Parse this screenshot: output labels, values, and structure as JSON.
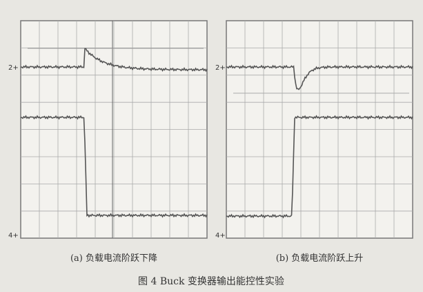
{
  "panels": [
    {
      "caption": "(a) 负载电流阶跃下降",
      "markers": [
        "2+",
        "4+"
      ]
    },
    {
      "caption": "(b) 负载电流阶跃上升",
      "markers": [
        "2+",
        "4+"
      ]
    }
  ],
  "figure_caption": "图 4  Buck 变换器输出能控性实验"
}
